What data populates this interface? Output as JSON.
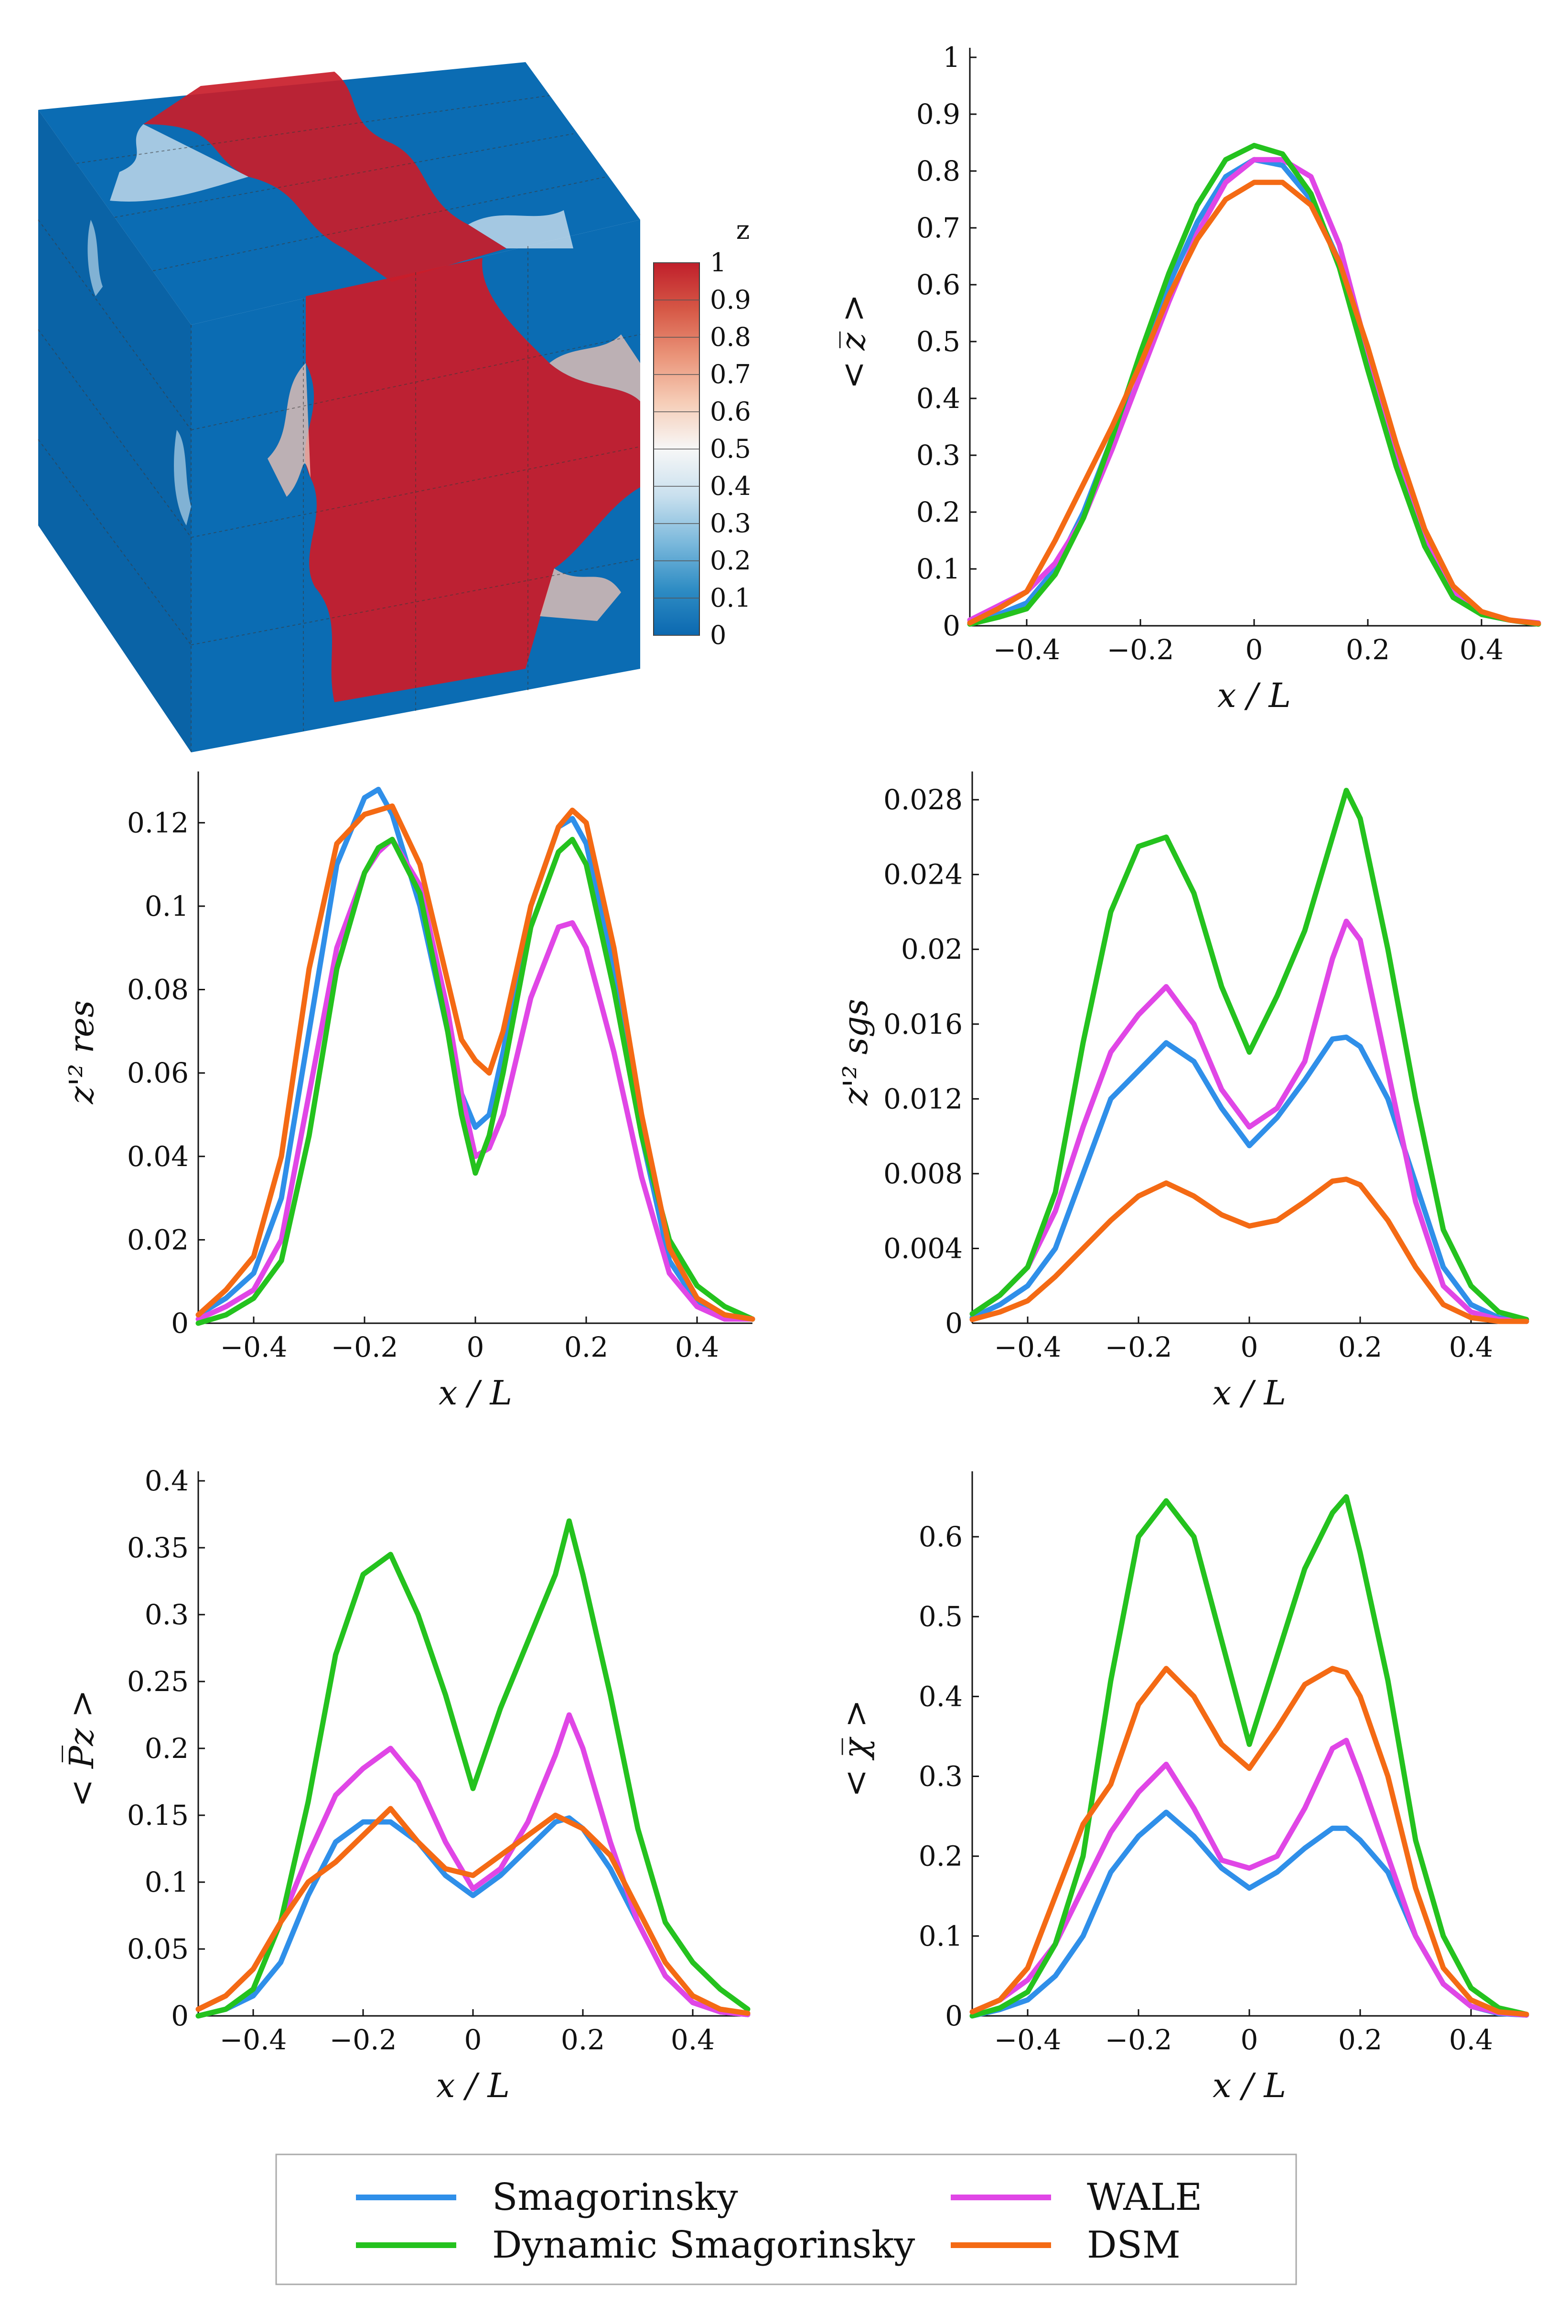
{
  "figure": {
    "colorbar": {
      "title": "z",
      "ticks": [
        "1",
        "0.9",
        "0.8",
        "0.7",
        "0.6",
        "0.5",
        "0.4",
        "0.3",
        "0.2",
        "0.1",
        "0"
      ],
      "colors": [
        "#0b68b0",
        "#2f8dc4",
        "#7cb9dc",
        "#c9e0ee",
        "#f7f7f7",
        "#f6cdb7",
        "#ea9479",
        "#d65846",
        "#c01f2b"
      ]
    },
    "legend": {
      "entries": [
        {
          "name": "Smagorinsky",
          "color": "#2f8fe9"
        },
        {
          "name": "WALE",
          "color": "#e046e6"
        },
        {
          "name": "Dynamic Smagorinsky",
          "color": "#24c21e"
        },
        {
          "name": "DSM",
          "color": "#f46a14"
        }
      ]
    }
  },
  "chart_data": [
    {
      "type": "line",
      "id": "zmean",
      "ylabel": "< z̅ >",
      "xlabel": "x / L",
      "xlim": [
        -0.5,
        0.5
      ],
      "ylim": [
        0,
        1
      ],
      "xticks": [
        "-0.4",
        "-0.2",
        "0",
        "0.2",
        "0.4"
      ],
      "yticks": [
        "0",
        "0.1",
        "0.2",
        "0.3",
        "0.4",
        "0.5",
        "0.6",
        "0.7",
        "0.8",
        "0.9",
        "1"
      ],
      "x": [
        -0.5,
        -0.45,
        -0.4,
        -0.35,
        -0.3,
        -0.25,
        -0.2,
        -0.15,
        -0.1,
        -0.05,
        0,
        0.05,
        0.1,
        0.15,
        0.2,
        0.25,
        0.3,
        0.35,
        0.4,
        0.45,
        0.5
      ],
      "series": [
        {
          "name": "Smagorinsky",
          "color": "#2f8fe9",
          "values": [
            0.005,
            0.02,
            0.04,
            0.1,
            0.2,
            0.33,
            0.47,
            0.6,
            0.71,
            0.79,
            0.82,
            0.81,
            0.75,
            0.64,
            0.47,
            0.3,
            0.15,
            0.06,
            0.02,
            0.01,
            0.003
          ]
        },
        {
          "name": "WALE",
          "color": "#e046e6",
          "values": [
            0.01,
            0.035,
            0.06,
            0.11,
            0.19,
            0.31,
            0.44,
            0.57,
            0.69,
            0.78,
            0.82,
            0.82,
            0.79,
            0.67,
            0.48,
            0.3,
            0.15,
            0.06,
            0.02,
            0.01,
            0.005
          ]
        },
        {
          "name": "Dynamic Smagorinsky",
          "color": "#24c21e",
          "values": [
            0.003,
            0.015,
            0.03,
            0.09,
            0.19,
            0.33,
            0.48,
            0.62,
            0.74,
            0.82,
            0.845,
            0.83,
            0.76,
            0.63,
            0.45,
            0.28,
            0.14,
            0.05,
            0.02,
            0.01,
            0.003
          ]
        },
        {
          "name": "DSM",
          "color": "#f46a14",
          "values": [
            0.005,
            0.03,
            0.06,
            0.15,
            0.25,
            0.35,
            0.46,
            0.58,
            0.68,
            0.75,
            0.78,
            0.78,
            0.74,
            0.64,
            0.49,
            0.32,
            0.17,
            0.07,
            0.025,
            0.01,
            0.004
          ]
        }
      ]
    },
    {
      "type": "line",
      "id": "zres",
      "ylabel": "z'² res",
      "xlabel": "x / L",
      "xlim": [
        -0.5,
        0.5
      ],
      "ylim": [
        0,
        0.13
      ],
      "xticks": [
        "-0.4",
        "-0.2",
        "0",
        "0.2",
        "0.4"
      ],
      "yticks": [
        "0",
        "0.02",
        "0.04",
        "0.06",
        "0.08",
        "0.1",
        "0.12"
      ],
      "x": [
        -0.5,
        -0.45,
        -0.4,
        -0.35,
        -0.3,
        -0.25,
        -0.2,
        -0.175,
        -0.15,
        -0.1,
        -0.05,
        -0.025,
        0,
        0.025,
        0.05,
        0.1,
        0.15,
        0.175,
        0.2,
        0.25,
        0.3,
        0.35,
        0.4,
        0.45,
        0.5
      ],
      "series": [
        {
          "name": "Smagorinsky",
          "color": "#2f8fe9",
          "values": [
            0.002,
            0.006,
            0.012,
            0.03,
            0.07,
            0.11,
            0.126,
            0.128,
            0.122,
            0.1,
            0.07,
            0.055,
            0.047,
            0.05,
            0.065,
            0.1,
            0.119,
            0.121,
            0.115,
            0.085,
            0.045,
            0.015,
            0.005,
            0.002,
            0.001
          ]
        },
        {
          "name": "WALE",
          "color": "#e046e6",
          "values": [
            0.001,
            0.004,
            0.008,
            0.02,
            0.055,
            0.09,
            0.108,
            0.113,
            0.116,
            0.105,
            0.075,
            0.055,
            0.04,
            0.042,
            0.05,
            0.078,
            0.095,
            0.096,
            0.09,
            0.065,
            0.035,
            0.012,
            0.004,
            0.001,
            0.001
          ]
        },
        {
          "name": "Dynamic Smagorinsky",
          "color": "#24c21e",
          "values": [
            0.0,
            0.002,
            0.006,
            0.015,
            0.045,
            0.085,
            0.108,
            0.114,
            0.116,
            0.103,
            0.07,
            0.05,
            0.036,
            0.045,
            0.06,
            0.095,
            0.113,
            0.116,
            0.11,
            0.08,
            0.045,
            0.02,
            0.009,
            0.004,
            0.001
          ]
        },
        {
          "name": "DSM",
          "color": "#f46a14",
          "values": [
            0.002,
            0.008,
            0.016,
            0.04,
            0.085,
            0.115,
            0.122,
            0.123,
            0.124,
            0.11,
            0.082,
            0.068,
            0.063,
            0.06,
            0.07,
            0.1,
            0.119,
            0.123,
            0.12,
            0.09,
            0.05,
            0.018,
            0.006,
            0.002,
            0.001
          ]
        }
      ]
    },
    {
      "type": "line",
      "id": "zsgs",
      "ylabel": "z'² sgs",
      "xlabel": "x / L",
      "xlim": [
        -0.5,
        0.5
      ],
      "ylim": [
        0,
        0.029
      ],
      "xticks": [
        "-0.4",
        "-0.2",
        "0",
        "0.2",
        "0.4"
      ],
      "yticks": [
        "0",
        "0.004",
        "0.008",
        "0.012",
        "0.016",
        "0.02",
        "0.024",
        "0.028"
      ],
      "x": [
        -0.5,
        -0.45,
        -0.4,
        -0.35,
        -0.3,
        -0.25,
        -0.2,
        -0.15,
        -0.1,
        -0.05,
        0,
        0.05,
        0.1,
        0.15,
        0.175,
        0.2,
        0.25,
        0.3,
        0.35,
        0.4,
        0.45,
        0.5
      ],
      "series": [
        {
          "name": "Smagorinsky",
          "color": "#2f8fe9",
          "values": [
            0.0003,
            0.001,
            0.002,
            0.004,
            0.008,
            0.012,
            0.0135,
            0.015,
            0.014,
            0.0115,
            0.0095,
            0.011,
            0.013,
            0.0152,
            0.0153,
            0.0148,
            0.012,
            0.0075,
            0.003,
            0.001,
            0.0003,
            0.0001
          ]
        },
        {
          "name": "WALE",
          "color": "#e046e6",
          "values": [
            0.0005,
            0.0015,
            0.003,
            0.006,
            0.0105,
            0.0145,
            0.0165,
            0.018,
            0.016,
            0.0125,
            0.0105,
            0.0115,
            0.014,
            0.0195,
            0.0215,
            0.0205,
            0.0135,
            0.0065,
            0.002,
            0.0006,
            0.0002,
            0.0001
          ]
        },
        {
          "name": "Dynamic Smagorinsky",
          "color": "#24c21e",
          "values": [
            0.0005,
            0.0015,
            0.003,
            0.007,
            0.015,
            0.022,
            0.0255,
            0.026,
            0.023,
            0.018,
            0.0145,
            0.0175,
            0.021,
            0.026,
            0.0285,
            0.027,
            0.02,
            0.012,
            0.005,
            0.002,
            0.0006,
            0.0002
          ]
        },
        {
          "name": "DSM",
          "color": "#f46a14",
          "values": [
            0.0002,
            0.0006,
            0.0012,
            0.0025,
            0.004,
            0.0055,
            0.0068,
            0.0075,
            0.0068,
            0.0058,
            0.0052,
            0.0055,
            0.0065,
            0.0076,
            0.0077,
            0.0074,
            0.0055,
            0.003,
            0.001,
            0.0003,
            0.0001,
            0.0001
          ]
        }
      ]
    },
    {
      "type": "line",
      "id": "pz",
      "ylabel": "< P̅z >",
      "xlabel": "x / L",
      "xlim": [
        -0.5,
        0.5
      ],
      "ylim": [
        0,
        0.4
      ],
      "xticks": [
        "-0.4",
        "-0.2",
        "0",
        "0.2",
        "0.4"
      ],
      "yticks": [
        "0",
        "0.05",
        "0.1",
        "0.15",
        "0.2",
        "0.25",
        "0.3",
        "0.35",
        "0.4"
      ],
      "x": [
        -0.5,
        -0.45,
        -0.4,
        -0.35,
        -0.3,
        -0.25,
        -0.2,
        -0.15,
        -0.1,
        -0.05,
        0,
        0.05,
        0.1,
        0.15,
        0.175,
        0.2,
        0.25,
        0.3,
        0.35,
        0.4,
        0.45,
        0.5
      ],
      "series": [
        {
          "name": "Smagorinsky",
          "color": "#2f8fe9",
          "values": [
            0.0,
            0.005,
            0.015,
            0.04,
            0.09,
            0.13,
            0.145,
            0.145,
            0.13,
            0.105,
            0.09,
            0.105,
            0.125,
            0.145,
            0.148,
            0.14,
            0.11,
            0.07,
            0.03,
            0.01,
            0.003,
            0.001
          ]
        },
        {
          "name": "WALE",
          "color": "#e046e6",
          "values": [
            0.005,
            0.015,
            0.035,
            0.07,
            0.12,
            0.165,
            0.185,
            0.2,
            0.175,
            0.13,
            0.095,
            0.11,
            0.145,
            0.195,
            0.225,
            0.2,
            0.13,
            0.07,
            0.03,
            0.01,
            0.003,
            0.001
          ]
        },
        {
          "name": "Dynamic Smagorinsky",
          "color": "#24c21e",
          "values": [
            0.0,
            0.005,
            0.02,
            0.07,
            0.16,
            0.27,
            0.33,
            0.345,
            0.3,
            0.24,
            0.17,
            0.23,
            0.28,
            0.33,
            0.37,
            0.33,
            0.24,
            0.14,
            0.07,
            0.04,
            0.02,
            0.005
          ]
        },
        {
          "name": "DSM",
          "color": "#f46a14",
          "values": [
            0.005,
            0.015,
            0.035,
            0.07,
            0.1,
            0.115,
            0.135,
            0.155,
            0.13,
            0.11,
            0.105,
            0.12,
            0.135,
            0.15,
            0.145,
            0.14,
            0.12,
            0.08,
            0.04,
            0.015,
            0.005,
            0.002
          ]
        }
      ]
    },
    {
      "type": "line",
      "id": "chi",
      "ylabel": "< χ̅ >",
      "xlabel": "x / L",
      "xlim": [
        -0.5,
        0.5
      ],
      "ylim": [
        0,
        0.67
      ],
      "xticks": [
        "-0.4",
        "-0.2",
        "0",
        "0.2",
        "0.4"
      ],
      "yticks": [
        "0",
        "0.1",
        "0.2",
        "0.3",
        "0.4",
        "0.5",
        "0.6"
      ],
      "x": [
        -0.5,
        -0.45,
        -0.4,
        -0.35,
        -0.3,
        -0.25,
        -0.2,
        -0.15,
        -0.1,
        -0.05,
        0,
        0.05,
        0.1,
        0.15,
        0.175,
        0.2,
        0.25,
        0.3,
        0.35,
        0.4,
        0.45,
        0.5
      ],
      "series": [
        {
          "name": "Smagorinsky",
          "color": "#2f8fe9",
          "values": [
            0.0,
            0.008,
            0.02,
            0.05,
            0.1,
            0.18,
            0.225,
            0.255,
            0.225,
            0.185,
            0.16,
            0.18,
            0.21,
            0.235,
            0.235,
            0.22,
            0.18,
            0.1,
            0.04,
            0.012,
            0.003,
            0.001
          ]
        },
        {
          "name": "WALE",
          "color": "#e046e6",
          "values": [
            0.005,
            0.02,
            0.045,
            0.09,
            0.16,
            0.23,
            0.28,
            0.315,
            0.26,
            0.195,
            0.185,
            0.2,
            0.26,
            0.335,
            0.345,
            0.3,
            0.2,
            0.1,
            0.04,
            0.012,
            0.004,
            0.001
          ]
        },
        {
          "name": "Dynamic Smagorinsky",
          "color": "#24c21e",
          "values": [
            0.0,
            0.01,
            0.03,
            0.09,
            0.2,
            0.42,
            0.6,
            0.645,
            0.6,
            0.47,
            0.34,
            0.45,
            0.56,
            0.63,
            0.65,
            0.58,
            0.42,
            0.22,
            0.1,
            0.035,
            0.01,
            0.002
          ]
        },
        {
          "name": "DSM",
          "color": "#f46a14",
          "values": [
            0.005,
            0.02,
            0.06,
            0.15,
            0.24,
            0.29,
            0.39,
            0.435,
            0.4,
            0.34,
            0.31,
            0.36,
            0.415,
            0.435,
            0.43,
            0.4,
            0.3,
            0.16,
            0.06,
            0.02,
            0.005,
            0.002
          ]
        }
      ]
    }
  ]
}
